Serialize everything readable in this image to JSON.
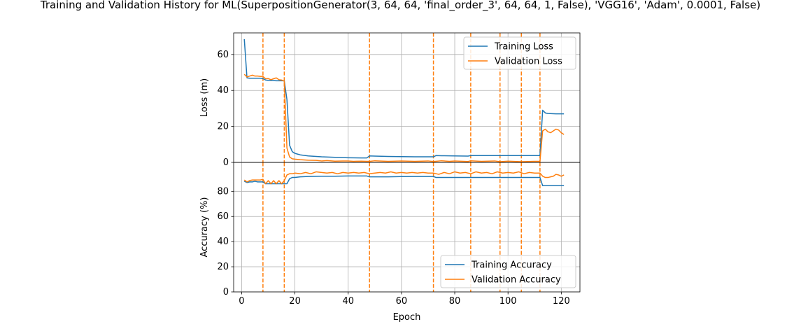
{
  "chart_data": [
    {
      "type": "line",
      "title": "Training and Validation History for ML(SuperpositionGenerator(3, 64, 64, 'final_order_3', 64, 64, 1, False), 'VGG16', 'Adam', 0.0001, False)",
      "xlabel": "",
      "ylabel": "Loss (m)",
      "xlim": [
        -3,
        127
      ],
      "ylim": [
        0,
        72
      ],
      "x_ticks": [
        0,
        20,
        40,
        60,
        80,
        100,
        120
      ],
      "y_ticks": [
        0,
        20,
        40,
        60
      ],
      "grid": true,
      "legend": "top-right",
      "vertical_markers": [
        8,
        16,
        48,
        72,
        86,
        97,
        105,
        112
      ],
      "series": [
        {
          "name": "Training Loss",
          "color": "#1f77b4",
          "points": [
            [
              1,
              68.5
            ],
            [
              2,
              47
            ],
            [
              3,
              46.8
            ],
            [
              4,
              46.8
            ],
            [
              5,
              46.8
            ],
            [
              6,
              46.8
            ],
            [
              7,
              46.8
            ],
            [
              8,
              46.6
            ],
            [
              9,
              45.8
            ],
            [
              10,
              45.6
            ],
            [
              11,
              45.5
            ],
            [
              12,
              45.5
            ],
            [
              13,
              45.4
            ],
            [
              14,
              45.4
            ],
            [
              15,
              45.4
            ],
            [
              16,
              45.4
            ],
            [
              17,
              35
            ],
            [
              18,
              9.5
            ],
            [
              19,
              6
            ],
            [
              20,
              5
            ],
            [
              22,
              4.2
            ],
            [
              25,
              3.6
            ],
            [
              30,
              3.1
            ],
            [
              35,
              2.8
            ],
            [
              40,
              2.6
            ],
            [
              45,
              2.5
            ],
            [
              47,
              2.5
            ],
            [
              48,
              3.6
            ],
            [
              50,
              3.5
            ],
            [
              55,
              3.3
            ],
            [
              60,
              3.2
            ],
            [
              65,
              3.1
            ],
            [
              70,
              3.1
            ],
            [
              72,
              3.1
            ],
            [
              73,
              3.8
            ],
            [
              75,
              3.7
            ],
            [
              80,
              3.6
            ],
            [
              85,
              3.5
            ],
            [
              86,
              3.8
            ],
            [
              90,
              3.8
            ],
            [
              95,
              3.8
            ],
            [
              97,
              3.8
            ],
            [
              100,
              3.8
            ],
            [
              105,
              3.8
            ],
            [
              110,
              3.8
            ],
            [
              112,
              3.8
            ],
            [
              113,
              29
            ],
            [
              114,
              27.5
            ],
            [
              115,
              27.2
            ],
            [
              118,
              27
            ],
            [
              121,
              27
            ]
          ]
        },
        {
          "name": "Validation Loss",
          "color": "#ff7f0e",
          "points": [
            [
              1,
              49
            ],
            [
              2,
              47.5
            ],
            [
              3,
              48
            ],
            [
              4,
              48.5
            ],
            [
              5,
              48
            ],
            [
              6,
              48
            ],
            [
              7,
              47.8
            ],
            [
              8,
              47.8
            ],
            [
              9,
              46.5
            ],
            [
              10,
              46.6
            ],
            [
              11,
              46
            ],
            [
              12,
              46.5
            ],
            [
              13,
              47
            ],
            [
              14,
              46
            ],
            [
              15,
              45.8
            ],
            [
              16,
              45.2
            ],
            [
              17,
              8
            ],
            [
              18,
              3
            ],
            [
              19,
              2
            ],
            [
              20,
              1.8
            ],
            [
              22,
              1.5
            ],
            [
              25,
              1.2
            ],
            [
              28,
              1.1
            ],
            [
              30,
              0.8
            ],
            [
              32,
              1
            ],
            [
              35,
              0.7
            ],
            [
              38,
              0.8
            ],
            [
              40,
              0.8
            ],
            [
              42,
              0.6
            ],
            [
              45,
              0.7
            ],
            [
              47,
              0.6
            ],
            [
              48,
              0.6
            ],
            [
              50,
              0.9
            ],
            [
              55,
              0.6
            ],
            [
              60,
              0.8
            ],
            [
              65,
              0.6
            ],
            [
              70,
              0.8
            ],
            [
              72,
              0.5
            ],
            [
              75,
              0.9
            ],
            [
              78,
              0.6
            ],
            [
              80,
              0.8
            ],
            [
              85,
              0.5
            ],
            [
              86,
              0.9
            ],
            [
              90,
              0.6
            ],
            [
              95,
              0.8
            ],
            [
              97,
              0.4
            ],
            [
              100,
              0.7
            ],
            [
              105,
              0.4
            ],
            [
              110,
              0.6
            ],
            [
              112,
              0.6
            ],
            [
              113,
              17.5
            ],
            [
              114,
              18.5
            ],
            [
              115,
              17
            ],
            [
              116,
              16.5
            ],
            [
              117,
              17.5
            ],
            [
              118,
              18.5
            ],
            [
              119,
              18
            ],
            [
              120,
              16.5
            ],
            [
              121,
              15.5
            ]
          ]
        }
      ]
    },
    {
      "type": "line",
      "title": "",
      "xlabel": "Epoch",
      "ylabel": "Accuracy (%)",
      "xlim": [
        -3,
        127
      ],
      "ylim": [
        0,
        103
      ],
      "x_ticks": [
        0,
        20,
        40,
        60,
        80,
        100,
        120
      ],
      "x_tick_labels": [
        "0",
        "20",
        "40",
        "60",
        "80",
        "100",
        "120"
      ],
      "y_ticks": [
        0,
        20,
        40,
        60,
        80
      ],
      "grid": true,
      "legend": "bottom-right",
      "vertical_markers": [
        8,
        16,
        48,
        72,
        86,
        97,
        105,
        112
      ],
      "series": [
        {
          "name": "Training Accuracy",
          "color": "#1f77b4",
          "points": [
            [
              1,
              88
            ],
            [
              2,
              87
            ],
            [
              3,
              87.5
            ],
            [
              4,
              87.5
            ],
            [
              5,
              88
            ],
            [
              6,
              87.5
            ],
            [
              7,
              87.5
            ],
            [
              8,
              87.5
            ],
            [
              9,
              86
            ],
            [
              10,
              86
            ],
            [
              11,
              86
            ],
            [
              12,
              86
            ],
            [
              13,
              86
            ],
            [
              14,
              86
            ],
            [
              15,
              86
            ],
            [
              16,
              86
            ],
            [
              17,
              86
            ],
            [
              18,
              90
            ],
            [
              19,
              91
            ],
            [
              20,
              91
            ],
            [
              22,
              91.5
            ],
            [
              25,
              91.8
            ],
            [
              30,
              92
            ],
            [
              35,
              92
            ],
            [
              40,
              92.2
            ],
            [
              45,
              92.2
            ],
            [
              47,
              92.2
            ],
            [
              48,
              91.5
            ],
            [
              50,
              91.5
            ],
            [
              55,
              91.5
            ],
            [
              60,
              91.7
            ],
            [
              65,
              91.8
            ],
            [
              70,
              91.8
            ],
            [
              72,
              91.8
            ],
            [
              73,
              91
            ],
            [
              75,
              91
            ],
            [
              80,
              91
            ],
            [
              85,
              91
            ],
            [
              86,
              91
            ],
            [
              90,
              91
            ],
            [
              95,
              91
            ],
            [
              100,
              91
            ],
            [
              105,
              91
            ],
            [
              110,
              91
            ],
            [
              112,
              91
            ],
            [
              113,
              84.5
            ],
            [
              114,
              84.5
            ],
            [
              115,
              84.5
            ],
            [
              118,
              84.5
            ],
            [
              121,
              84.5
            ]
          ]
        },
        {
          "name": "Validation Accuracy",
          "color": "#ff7f0e",
          "points": [
            [
              1,
              89
            ],
            [
              2,
              87.5
            ],
            [
              3,
              88.5
            ],
            [
              4,
              89
            ],
            [
              5,
              89
            ],
            [
              6,
              89
            ],
            [
              7,
              89
            ],
            [
              8,
              89.5
            ],
            [
              9,
              86
            ],
            [
              10,
              88.5
            ],
            [
              11,
              86
            ],
            [
              12,
              88.5
            ],
            [
              13,
              86
            ],
            [
              14,
              88.5
            ],
            [
              15,
              86
            ],
            [
              16,
              88.5
            ],
            [
              17,
              93
            ],
            [
              18,
              94
            ],
            [
              19,
              94
            ],
            [
              20,
              94.5
            ],
            [
              22,
              94
            ],
            [
              24,
              95
            ],
            [
              26,
              94
            ],
            [
              28,
              95.5
            ],
            [
              30,
              95
            ],
            [
              32,
              94.5
            ],
            [
              34,
              95
            ],
            [
              36,
              94
            ],
            [
              38,
              95
            ],
            [
              40,
              94.5
            ],
            [
              42,
              95
            ],
            [
              44,
              94.5
            ],
            [
              46,
              95
            ],
            [
              48,
              94
            ],
            [
              50,
              94.5
            ],
            [
              52,
              95
            ],
            [
              54,
              94.5
            ],
            [
              56,
              95.5
            ],
            [
              58,
              94.5
            ],
            [
              60,
              95
            ],
            [
              62,
              94.5
            ],
            [
              64,
              95
            ],
            [
              66,
              94.5
            ],
            [
              68,
              95
            ],
            [
              70,
              94.5
            ],
            [
              72,
              94.5
            ],
            [
              74,
              93.5
            ],
            [
              76,
              95
            ],
            [
              78,
              94
            ],
            [
              80,
              95.5
            ],
            [
              82,
              94.5
            ],
            [
              84,
              95
            ],
            [
              86,
              94
            ],
            [
              88,
              95.5
            ],
            [
              90,
              94.5
            ],
            [
              92,
              95
            ],
            [
              94,
              94
            ],
            [
              96,
              95.5
            ],
            [
              98,
              94.5
            ],
            [
              100,
              95
            ],
            [
              102,
              94.5
            ],
            [
              104,
              95.5
            ],
            [
              106,
              94
            ],
            [
              108,
              95
            ],
            [
              110,
              94.5
            ],
            [
              112,
              94.5
            ],
            [
              113,
              92
            ],
            [
              114,
              91
            ],
            [
              115,
              91
            ],
            [
              116,
              91.5
            ],
            [
              117,
              92
            ],
            [
              118,
              93.5
            ],
            [
              119,
              93
            ],
            [
              120,
              92
            ],
            [
              121,
              93
            ]
          ]
        }
      ]
    }
  ]
}
